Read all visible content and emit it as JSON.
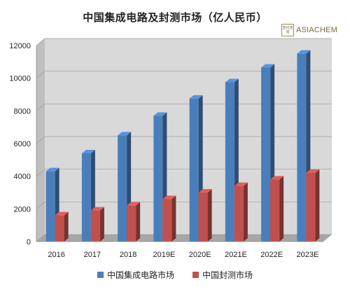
{
  "chart_data": {
    "type": "bar",
    "title": "中国集成电路及封测市场（亿人民币）",
    "categories": [
      "2016",
      "2017",
      "2018",
      "2019E",
      "2020E",
      "2021E",
      "2022E",
      "2023E"
    ],
    "series": [
      {
        "name": "中国集成电路市场",
        "values": [
          4300,
          5400,
          6500,
          7700,
          8750,
          9750,
          10650,
          11500
        ],
        "color": "#4a7ebb"
      },
      {
        "name": "中国封测市场",
        "values": [
          1600,
          1900,
          2200,
          2600,
          3000,
          3400,
          3800,
          4200
        ],
        "color": "#c0504d"
      }
    ],
    "yticks": [
      "0",
      "2000",
      "4000",
      "6000",
      "8000",
      "10000",
      "12000"
    ],
    "ylim": [
      0,
      12000
    ],
    "grid": true,
    "legend": "bottom",
    "style": "3d-clustered-column"
  },
  "logo": {
    "mark": "亚化咨询",
    "text": "ASIACHEM"
  }
}
